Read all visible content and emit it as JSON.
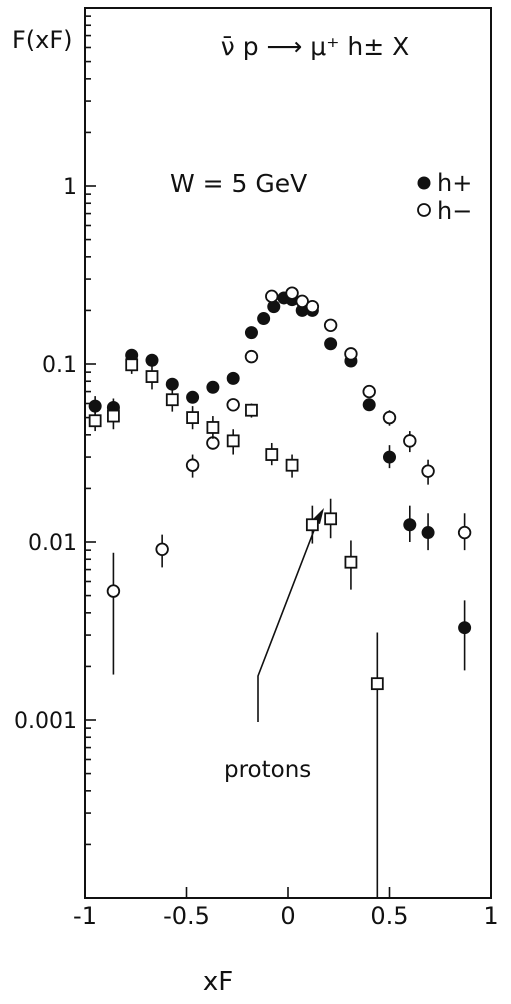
{
  "chart_data": {
    "type": "scatter",
    "title": "",
    "reaction": "ν̄ p ⟶ μ⁺ h± X",
    "condition": "W = 5 GeV",
    "ylabel": "F(xF)",
    "xlabel": "xF",
    "xlim": [
      -1,
      1
    ],
    "ylim": [
      0.0001,
      10
    ],
    "yscale": "log",
    "grid": false,
    "legend_position": "top-right",
    "x_ticks": [
      -1,
      -0.5,
      0,
      0.5,
      1
    ],
    "x_tick_labels": [
      "-1",
      "-0.5",
      "0",
      "0.5",
      "1"
    ],
    "y_ticks": [
      0.001,
      0.01,
      0.1,
      1
    ],
    "y_tick_labels": [
      "0.001",
      "0.01",
      "0.1",
      "1"
    ],
    "annotation": {
      "text": "protons",
      "target_x": 0.12,
      "target_y": 0.011
    },
    "series": [
      {
        "name": "h+",
        "marker": "filled-circle",
        "points": [
          {
            "x": -0.95,
            "y": 0.058,
            "lo": 0.051,
            "hi": 0.066
          },
          {
            "x": -0.86,
            "y": 0.057,
            "lo": 0.051,
            "hi": 0.064
          },
          {
            "x": -0.77,
            "y": 0.112,
            "lo": 0.104,
            "hi": 0.12
          },
          {
            "x": -0.67,
            "y": 0.105,
            "lo": 0.097,
            "hi": 0.113
          },
          {
            "x": -0.57,
            "y": 0.077,
            "lo": 0.071,
            "hi": 0.083
          },
          {
            "x": -0.47,
            "y": 0.065
          },
          {
            "x": -0.37,
            "y": 0.074
          },
          {
            "x": -0.27,
            "y": 0.083
          },
          {
            "x": -0.18,
            "y": 0.15
          },
          {
            "x": -0.12,
            "y": 0.18
          },
          {
            "x": -0.07,
            "y": 0.21
          },
          {
            "x": -0.02,
            "y": 0.235
          },
          {
            "x": 0.02,
            "y": 0.23
          },
          {
            "x": 0.07,
            "y": 0.2
          },
          {
            "x": 0.12,
            "y": 0.2
          },
          {
            "x": 0.21,
            "y": 0.13
          },
          {
            "x": 0.31,
            "y": 0.104
          },
          {
            "x": 0.4,
            "y": 0.059
          },
          {
            "x": 0.5,
            "y": 0.03,
            "lo": 0.026,
            "hi": 0.035
          },
          {
            "x": 0.6,
            "y": 0.0125,
            "lo": 0.01,
            "hi": 0.016
          },
          {
            "x": 0.69,
            "y": 0.0113,
            "lo": 0.009,
            "hi": 0.0145
          },
          {
            "x": 0.87,
            "y": 0.0033,
            "lo": 0.0019,
            "hi": 0.0047
          }
        ]
      },
      {
        "name": "h−",
        "marker": "open-circle",
        "points": [
          {
            "x": -0.86,
            "y": 0.0053,
            "lo": 0.0018,
            "hi": 0.0087
          },
          {
            "x": -0.62,
            "y": 0.0091,
            "lo": 0.0072,
            "hi": 0.011
          },
          {
            "x": -0.47,
            "y": 0.027,
            "lo": 0.023,
            "hi": 0.031
          },
          {
            "x": -0.37,
            "y": 0.036,
            "lo": 0.033,
            "hi": 0.039
          },
          {
            "x": -0.27,
            "y": 0.059
          },
          {
            "x": -0.18,
            "y": 0.11
          },
          {
            "x": -0.08,
            "y": 0.24
          },
          {
            "x": 0.02,
            "y": 0.25
          },
          {
            "x": 0.07,
            "y": 0.225
          },
          {
            "x": 0.12,
            "y": 0.21
          },
          {
            "x": 0.21,
            "y": 0.165
          },
          {
            "x": 0.31,
            "y": 0.114
          },
          {
            "x": 0.4,
            "y": 0.07
          },
          {
            "x": 0.5,
            "y": 0.05,
            "lo": 0.045,
            "hi": 0.055
          },
          {
            "x": 0.6,
            "y": 0.037,
            "lo": 0.032,
            "hi": 0.042
          },
          {
            "x": 0.69,
            "y": 0.025,
            "lo": 0.021,
            "hi": 0.029
          },
          {
            "x": 0.87,
            "y": 0.0113,
            "lo": 0.009,
            "hi": 0.0145
          }
        ]
      },
      {
        "name": "protons",
        "marker": "open-square",
        "points": [
          {
            "x": -0.95,
            "y": 0.048,
            "lo": 0.042,
            "hi": 0.055
          },
          {
            "x": -0.86,
            "y": 0.051,
            "lo": 0.043,
            "hi": 0.06
          },
          {
            "x": -0.77,
            "y": 0.099,
            "lo": 0.088,
            "hi": 0.11
          },
          {
            "x": -0.67,
            "y": 0.085,
            "lo": 0.072,
            "hi": 0.097
          },
          {
            "x": -0.57,
            "y": 0.063,
            "lo": 0.054,
            "hi": 0.073
          },
          {
            "x": -0.47,
            "y": 0.05,
            "lo": 0.043,
            "hi": 0.058
          },
          {
            "x": -0.37,
            "y": 0.044,
            "lo": 0.038,
            "hi": 0.051
          },
          {
            "x": -0.27,
            "y": 0.037,
            "lo": 0.031,
            "hi": 0.043
          },
          {
            "x": -0.18,
            "y": 0.055,
            "lo": 0.05,
            "hi": 0.06
          },
          {
            "x": -0.08,
            "y": 0.031,
            "lo": 0.027,
            "hi": 0.036
          },
          {
            "x": 0.02,
            "y": 0.027,
            "lo": 0.023,
            "hi": 0.031
          },
          {
            "x": 0.12,
            "y": 0.0125,
            "lo": 0.0098,
            "hi": 0.016
          },
          {
            "x": 0.21,
            "y": 0.0135,
            "lo": 0.0105,
            "hi": 0.0175
          },
          {
            "x": 0.31,
            "y": 0.0077,
            "lo": 0.0054,
            "hi": 0.0102
          },
          {
            "x": 0.44,
            "y": 0.0016,
            "lo": 0.0001,
            "hi": 0.0031
          }
        ]
      }
    ]
  }
}
